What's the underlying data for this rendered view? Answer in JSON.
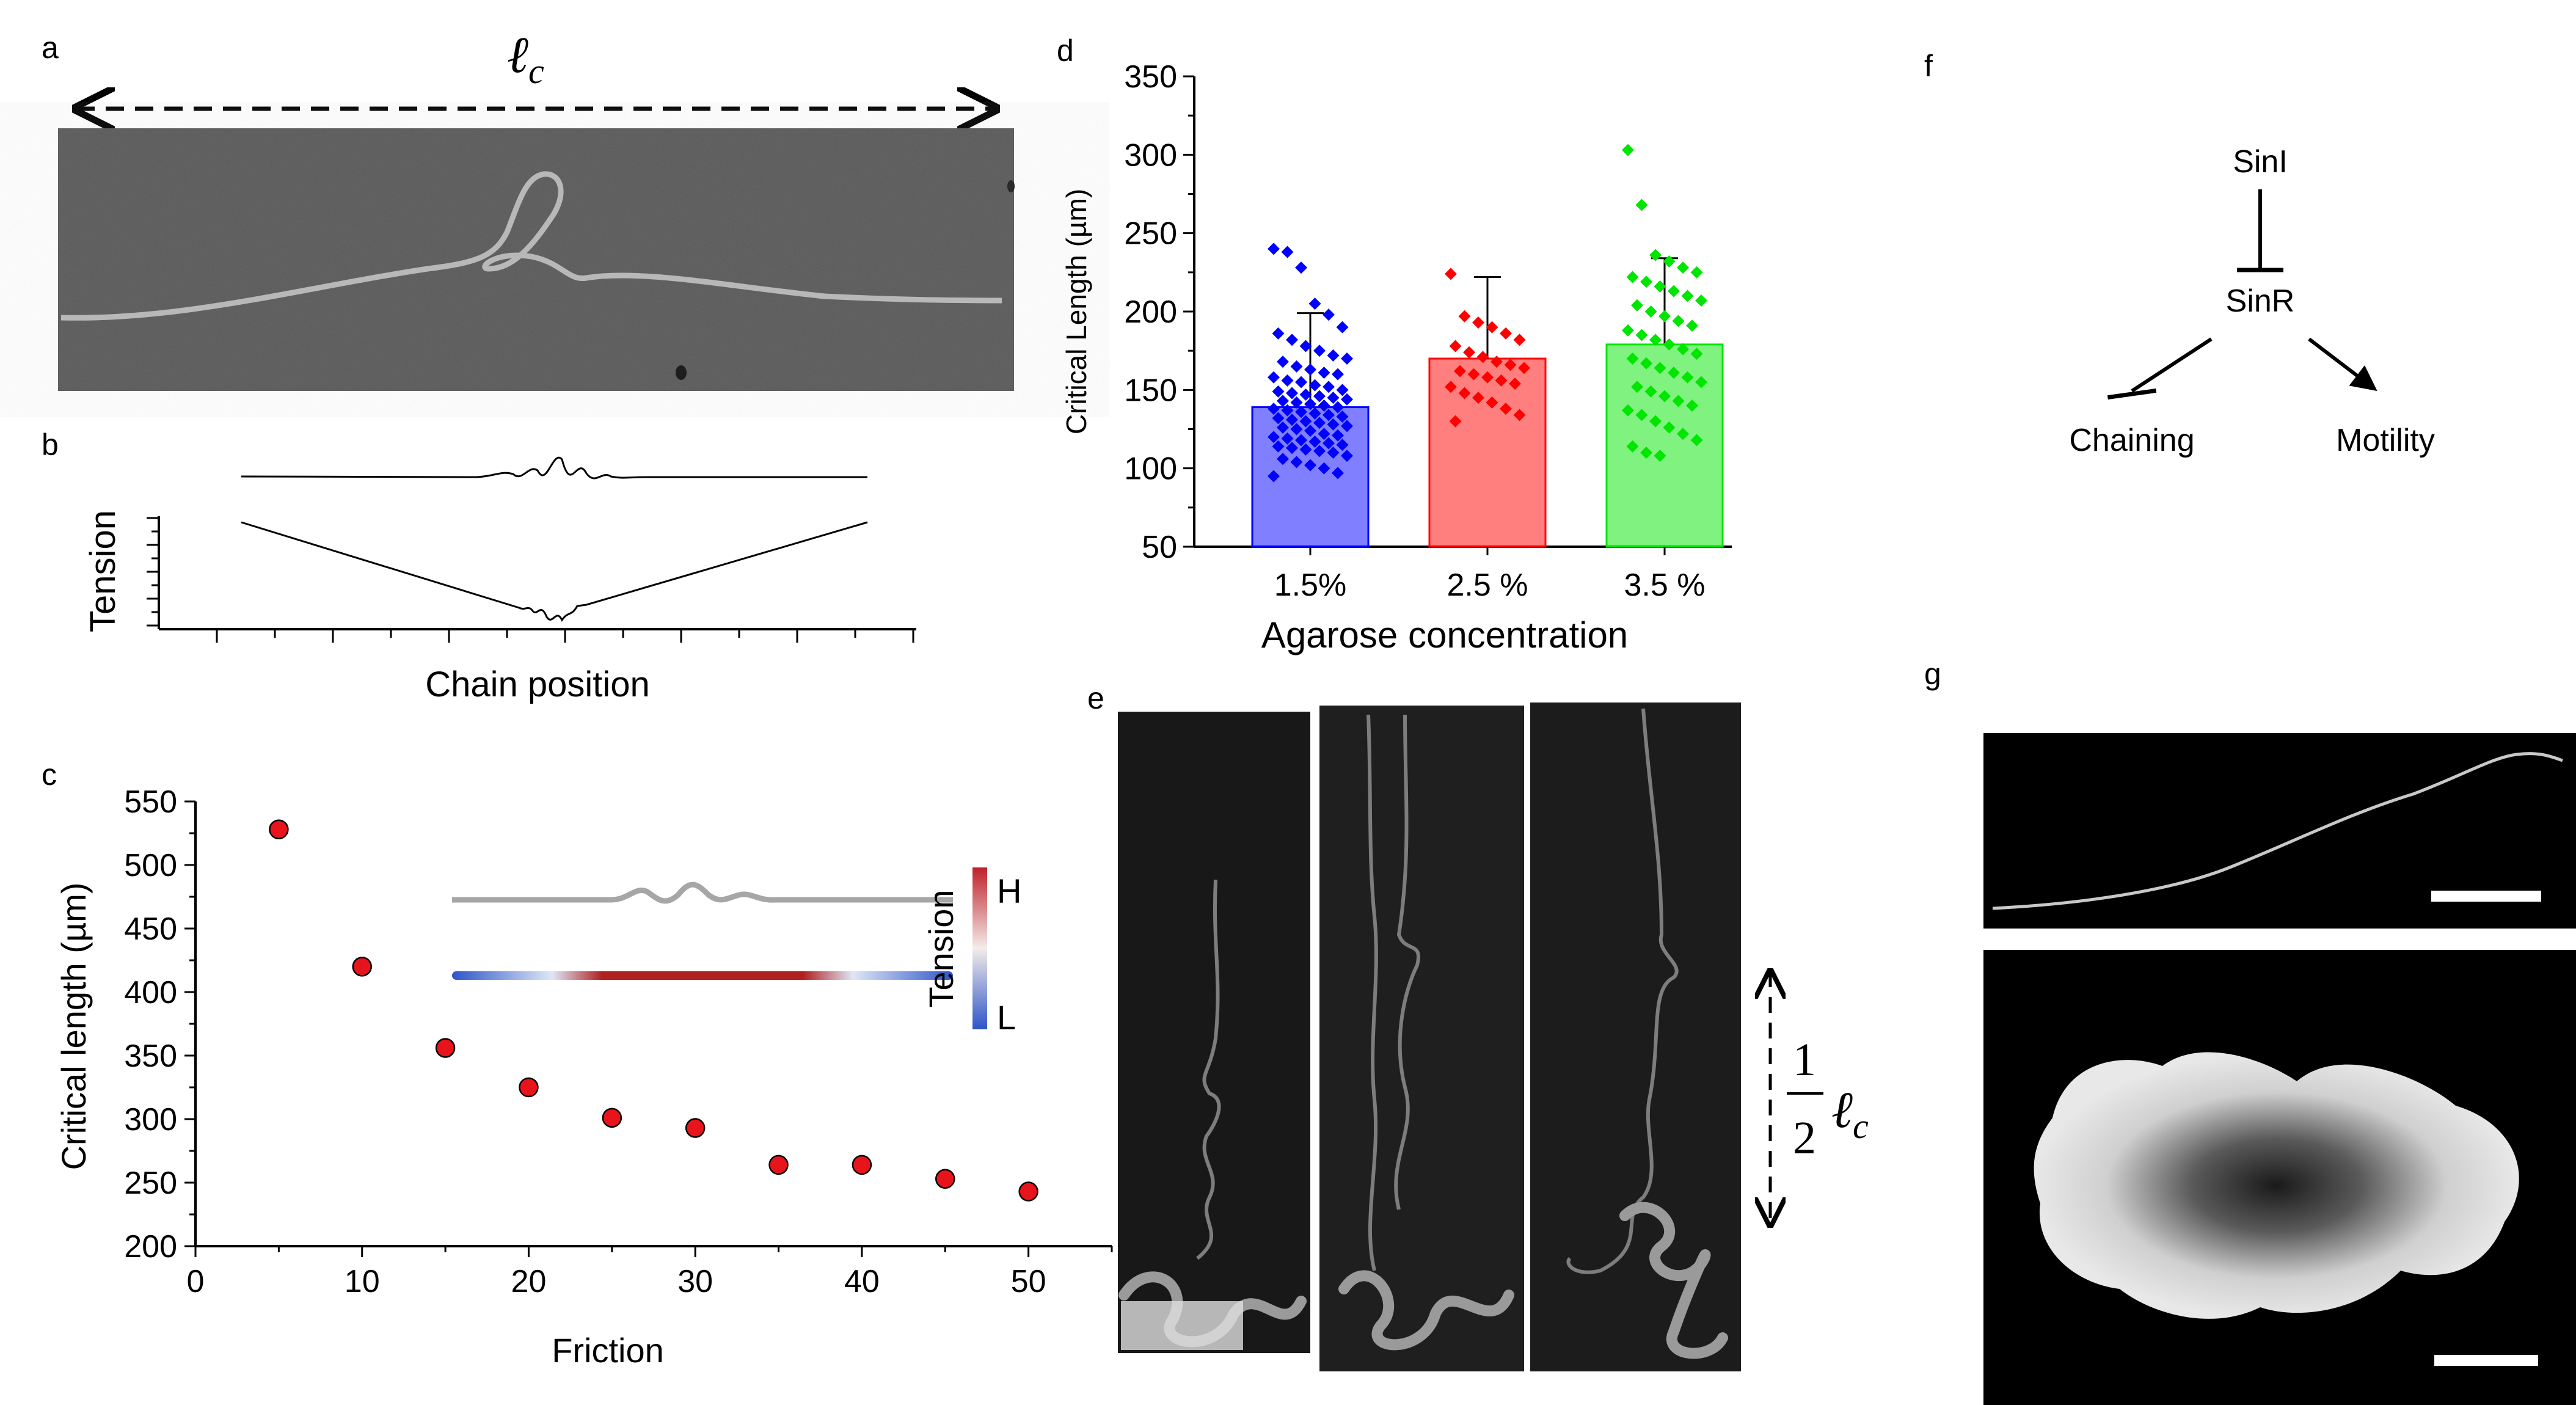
{
  "panel_labels": {
    "a": "a",
    "b": "b",
    "c": "c",
    "d": "d",
    "e": "e",
    "f": "f",
    "g": "g"
  },
  "panel_a": {
    "length_label": "ℓ",
    "length_sub": "c"
  },
  "panel_b": {
    "ylabel": "Tension",
    "xlabel": "Chain position"
  },
  "panel_c": {
    "chart_data": {
      "type": "scatter",
      "xlabel": "Friction",
      "ylabel": "Critical length (µm)",
      "xlim": [
        0,
        55
      ],
      "ylim": [
        200,
        550
      ],
      "xticks": [
        0,
        10,
        20,
        30,
        40,
        50
      ],
      "yticks": [
        200,
        250,
        300,
        350,
        400,
        450,
        500,
        550
      ],
      "x": [
        5,
        10,
        15,
        20,
        25,
        30,
        35,
        40,
        45,
        50
      ],
      "y": [
        528,
        420,
        356,
        325,
        301,
        293,
        264,
        264,
        253,
        243
      ],
      "point_color": "#e8141b"
    },
    "colorbar": {
      "title": "Tension",
      "high": "H",
      "low": "L"
    }
  },
  "panel_d": {
    "chart_data": {
      "type": "bar",
      "categories": [
        "1.5%",
        "2.5 %",
        "3.5 %"
      ],
      "values": [
        139,
        170,
        179
      ],
      "errors": [
        60,
        52,
        55
      ],
      "colors": [
        "#0000ff",
        "#ff0000",
        "#00e600"
      ],
      "ylabel": "Critical Length (µm)",
      "xlabel": "Agarose concentration",
      "ylim": [
        50,
        350
      ],
      "yticks": [
        50,
        100,
        150,
        200,
        250,
        300,
        350
      ],
      "points": [
        [
          240,
          238,
          228,
          205,
          198,
          190,
          186,
          182,
          178,
          175,
          172,
          170,
          168,
          165,
          163,
          161,
          160,
          158,
          156,
          155,
          153,
          152,
          150,
          149,
          148,
          147,
          146,
          145,
          144,
          143,
          142,
          141,
          140,
          139,
          138,
          137,
          136,
          135,
          134,
          133,
          132,
          131,
          130,
          129,
          128,
          127,
          126,
          125,
          124,
          122,
          121,
          120,
          119,
          118,
          117,
          116,
          115,
          114,
          113,
          112,
          111,
          110,
          108,
          106,
          104,
          102,
          100,
          97,
          95
        ],
        [
          224,
          197,
          193,
          190,
          186,
          182,
          178,
          174,
          171,
          168,
          166,
          164,
          162,
          160,
          158,
          156,
          154,
          152,
          148,
          145,
          142,
          138,
          134,
          130
        ],
        [
          303,
          268,
          236,
          232,
          228,
          225,
          222,
          219,
          216,
          213,
          210,
          207,
          204,
          200,
          197,
          194,
          191,
          188,
          185,
          182,
          179,
          176,
          173,
          170,
          167,
          164,
          161,
          158,
          155,
          152,
          149,
          146,
          143,
          140,
          137,
          134,
          130,
          126,
          122,
          118,
          114,
          110,
          108
        ]
      ]
    }
  },
  "panel_e": {
    "fraction_num": "1",
    "fraction_den": "2",
    "length_label": "ℓ",
    "length_sub": "c"
  },
  "panel_f": {
    "node_top": "SinI",
    "node_mid": "SinR",
    "node_left": "Chaining",
    "node_right": "Motility"
  }
}
